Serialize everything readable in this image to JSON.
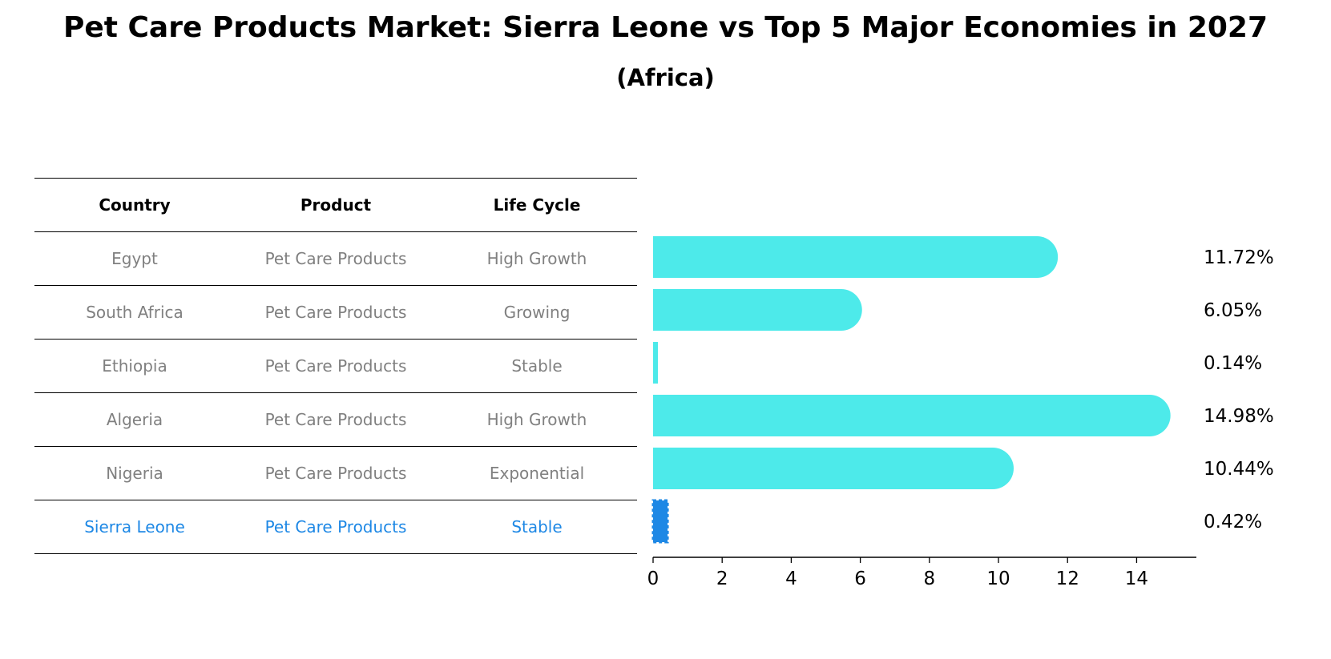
{
  "chart_data": {
    "type": "bar",
    "orientation": "horizontal",
    "title": "Pet Care Products Market: Sierra Leone vs Top 5 Major Economies in 2027",
    "subtitle": "(Africa)",
    "columns": [
      "Country",
      "Product",
      "Life Cycle"
    ],
    "rows": [
      {
        "country": "Egypt",
        "product": "Pet Care Products",
        "life_cycle": "High Growth",
        "value": 11.72,
        "label": "11.72%"
      },
      {
        "country": "South Africa",
        "product": "Pet Care Products",
        "life_cycle": "Growing",
        "value": 6.05,
        "label": "6.05%"
      },
      {
        "country": "Ethiopia",
        "product": "Pet Care Products",
        "life_cycle": "Stable",
        "value": 0.14,
        "label": "0.14%"
      },
      {
        "country": "Algeria",
        "product": "Pet Care Products",
        "life_cycle": "High Growth",
        "value": 14.98,
        "label": "14.98%"
      },
      {
        "country": "Nigeria",
        "product": "Pet Care Products",
        "life_cycle": "Exponential",
        "value": 10.44,
        "label": "10.44%"
      },
      {
        "country": "Sierra Leone",
        "product": "Pet Care Products",
        "life_cycle": "Stable",
        "value": 0.42,
        "label": "0.42%",
        "highlight": true
      }
    ],
    "xlim": [
      0,
      15.73
    ],
    "xticks": [
      0,
      2,
      4,
      6,
      8,
      10,
      12,
      14
    ],
    "colors": {
      "default": "#4deaea",
      "highlight": "#1e88e5"
    }
  }
}
